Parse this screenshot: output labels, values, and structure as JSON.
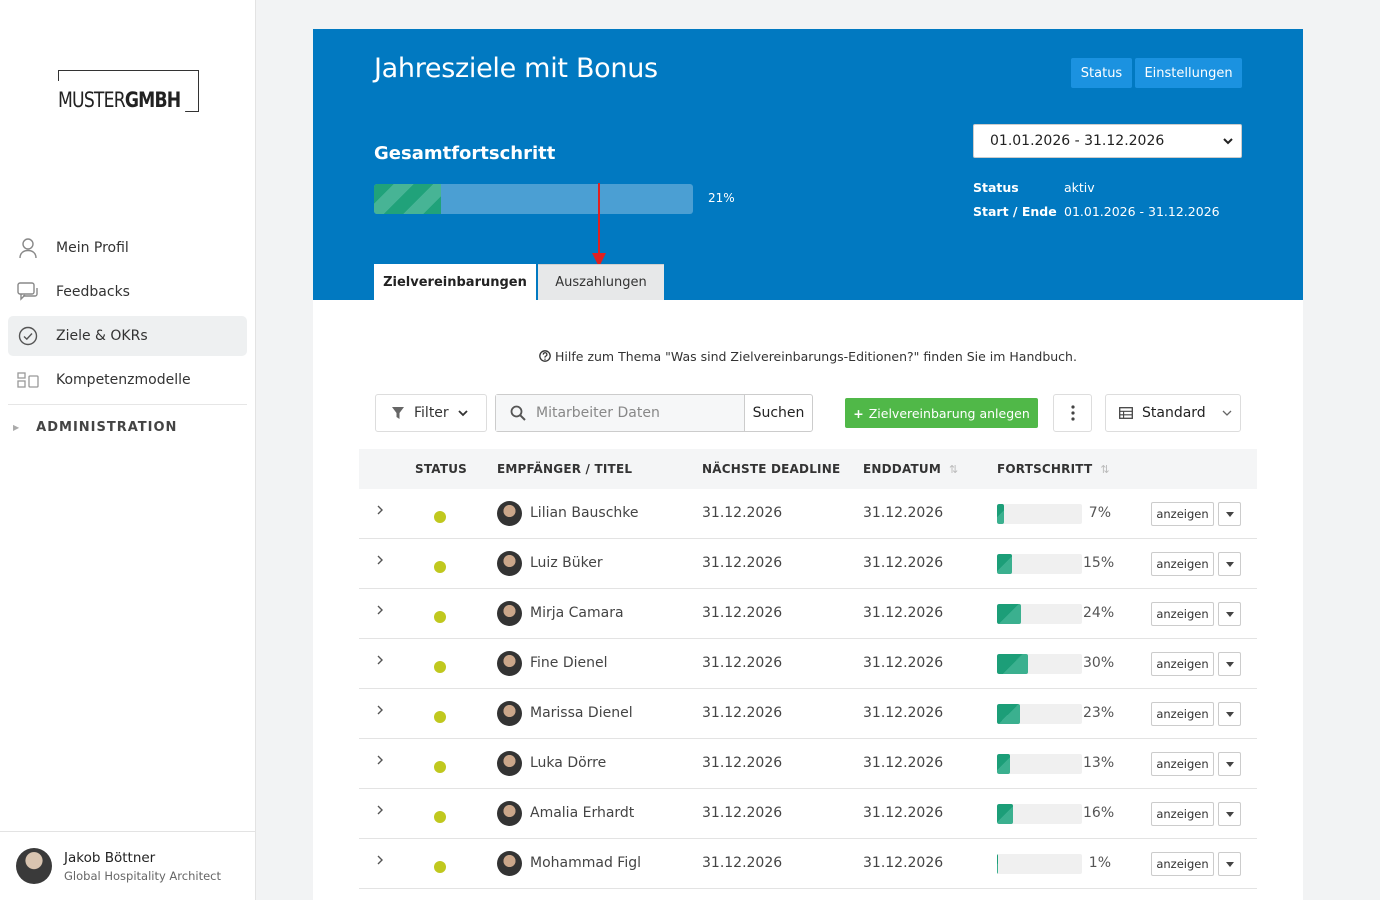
{
  "sidebar": {
    "logo_prefix": "MUSTER",
    "logo_suffix": "GMBH",
    "items": [
      {
        "label": "Mein Profil",
        "icon": "user-icon"
      },
      {
        "label": "Feedbacks",
        "icon": "chat-icon"
      },
      {
        "label": "Ziele & OKRs",
        "icon": "check-circle-icon"
      },
      {
        "label": "Kompetenzmodelle",
        "icon": "modules-icon"
      }
    ],
    "admin_label": "ADMINISTRATION",
    "user": {
      "name": "Jakob Böttner",
      "role": "Global Hospitality Architect"
    }
  },
  "header": {
    "title": "Jahresziele mit Bonus",
    "status_button": "Status",
    "settings_button": "Einstellungen",
    "progress_label": "Gesamtfortschritt",
    "progress_value": 0.21,
    "progress_text": "21%",
    "date_range": "01.01.2026 - 31.12.2026",
    "meta": {
      "status_label": "Status",
      "status_value": "aktiv",
      "range_label": "Start / Ende",
      "range_value": "01.01.2026 - 31.12.2026"
    },
    "tabs": {
      "active": "Zielvereinbarungen",
      "inactive": "Auszahlungen"
    },
    "accent_color": "#0179c1"
  },
  "help_text": "Hilfe zum Thema \"Was sind Zielvereinbarungs-Editionen?\" finden Sie im Handbuch.",
  "toolbar": {
    "filter_label": "Filter",
    "search_placeholder": "Mitarbeiter Daten",
    "search_button": "Suchen",
    "add_button": "Zielvereinbarung anlegen",
    "view_label": "Standard"
  },
  "table": {
    "headers": {
      "status": "STATUS",
      "recipient": "EMPFÄNGER / TITEL",
      "deadline": "NÄCHSTE DEADLINE",
      "end": "ENDDATUM",
      "progress": "FORTSCHRITT"
    },
    "show_label": "anzeigen",
    "rows": [
      {
        "name": "Lilian Bauschke",
        "deadline": "31.12.2026",
        "end": "31.12.2026",
        "progress": 0.07,
        "pct": "7%",
        "status_color": "#c0c81e"
      },
      {
        "name": "Luiz Büker",
        "deadline": "31.12.2026",
        "end": "31.12.2026",
        "progress": 0.15,
        "pct": "15%",
        "status_color": "#c0c81e"
      },
      {
        "name": "Mirja Camara",
        "deadline": "31.12.2026",
        "end": "31.12.2026",
        "progress": 0.24,
        "pct": "24%",
        "status_color": "#c0c81e"
      },
      {
        "name": "Fine Dienel",
        "deadline": "31.12.2026",
        "end": "31.12.2026",
        "progress": 0.3,
        "pct": "30%",
        "status_color": "#c0c81e"
      },
      {
        "name": "Marissa Dienel",
        "deadline": "31.12.2026",
        "end": "31.12.2026",
        "progress": 0.23,
        "pct": "23%",
        "status_color": "#c0c81e"
      },
      {
        "name": "Luka Dörre",
        "deadline": "31.12.2026",
        "end": "31.12.2026",
        "progress": 0.13,
        "pct": "13%",
        "status_color": "#c0c81e"
      },
      {
        "name": "Amalia Erhardt",
        "deadline": "31.12.2026",
        "end": "31.12.2026",
        "progress": 0.16,
        "pct": "16%",
        "status_color": "#c0c81e"
      },
      {
        "name": "Mohammad Figl",
        "deadline": "31.12.2026",
        "end": "31.12.2026",
        "progress": 0.01,
        "pct": "1%",
        "status_color": "#c0c81e"
      }
    ]
  }
}
